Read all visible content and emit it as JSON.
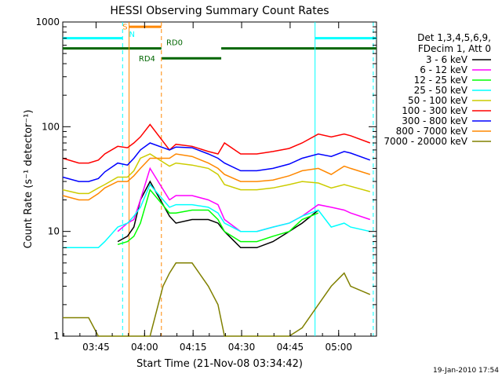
{
  "chart_data": {
    "type": "line",
    "title": "HESSI Observing Summary Count Rates",
    "xlabel": "Start Time (21-Nov-08 03:34:42)",
    "ylabel": "Count Rate (s⁻¹ detector⁻¹)",
    "yscale": "log",
    "ylim": [
      1,
      1000
    ],
    "xlim_minutes": [
      0,
      97
    ],
    "xticks": [
      {
        "label": "03:45",
        "minute": 10.3
      },
      {
        "label": "04:00",
        "minute": 25.3
      },
      {
        "label": "04:15",
        "minute": 40.3
      },
      {
        "label": "04:30",
        "minute": 55.3
      },
      {
        "label": "04:45",
        "minute": 70.3
      },
      {
        "label": "05:00",
        "minute": 85.3
      }
    ],
    "yticks": [
      {
        "label": "1",
        "value": 1
      },
      {
        "label": "10",
        "value": 10
      },
      {
        "label": "100",
        "value": 100
      },
      {
        "label": "1000",
        "value": 1000
      }
    ],
    "legend_header": [
      "Det 1,3,4,5,6,9,",
      "FDecim 1, Att 0"
    ],
    "legend_position": "right",
    "series": [
      {
        "name": "3 - 6 keV",
        "color": "#000000",
        "points": [
          [
            17,
            8
          ],
          [
            20,
            9
          ],
          [
            22,
            11
          ],
          [
            24,
            20
          ],
          [
            27,
            30
          ],
          [
            33,
            14
          ],
          [
            35,
            12
          ],
          [
            40,
            13
          ],
          [
            45,
            13
          ],
          [
            48,
            12
          ],
          [
            50,
            10
          ],
          [
            55,
            7
          ],
          [
            60,
            7
          ],
          [
            65,
            8
          ],
          [
            70,
            10
          ],
          [
            74,
            12
          ],
          [
            79,
            16
          ]
        ]
      },
      {
        "name": "6 - 12 keV",
        "color": "#ff00ff",
        "points": [
          [
            17,
            10
          ],
          [
            20,
            12
          ],
          [
            22,
            13
          ],
          [
            24,
            20
          ],
          [
            27,
            40
          ],
          [
            33,
            20
          ],
          [
            35,
            22
          ],
          [
            40,
            22
          ],
          [
            45,
            20
          ],
          [
            48,
            18
          ],
          [
            50,
            13
          ],
          [
            55,
            10
          ],
          [
            60,
            10
          ],
          [
            65,
            11
          ],
          [
            70,
            12
          ],
          [
            74,
            14
          ],
          [
            79,
            18
          ],
          [
            83,
            17
          ],
          [
            87,
            16
          ],
          [
            89,
            15
          ],
          [
            95,
            13
          ]
        ]
      },
      {
        "name": "12 - 25 keV",
        "color": "#00ff00",
        "points": [
          [
            17,
            7.5
          ],
          [
            20,
            8
          ],
          [
            22,
            9
          ],
          [
            24,
            12
          ],
          [
            27,
            25
          ],
          [
            33,
            15
          ],
          [
            35,
            15
          ],
          [
            40,
            16
          ],
          [
            45,
            16
          ],
          [
            48,
            13
          ],
          [
            50,
            10
          ],
          [
            55,
            8
          ],
          [
            60,
            8
          ],
          [
            65,
            9
          ],
          [
            70,
            10
          ],
          [
            74,
            13
          ],
          [
            79,
            15
          ]
        ]
      },
      {
        "name": "25 - 50 keV",
        "color": "#00ffff",
        "points": [
          [
            0,
            7
          ],
          [
            5,
            7
          ],
          [
            8,
            7
          ],
          [
            11,
            7
          ],
          [
            13,
            8
          ],
          [
            17,
            11
          ],
          [
            20,
            12
          ],
          [
            22,
            14
          ],
          [
            24,
            17
          ],
          [
            27,
            28
          ],
          [
            33,
            17
          ],
          [
            35,
            18
          ],
          [
            40,
            18
          ],
          [
            45,
            17
          ],
          [
            48,
            15
          ],
          [
            50,
            12
          ],
          [
            55,
            10
          ],
          [
            60,
            10
          ],
          [
            65,
            11
          ],
          [
            70,
            12
          ],
          [
            74,
            14
          ],
          [
            79,
            16
          ],
          [
            83,
            11
          ],
          [
            87,
            12
          ],
          [
            89,
            11
          ],
          [
            95,
            10
          ]
        ]
      },
      {
        "name": "50 - 100 keV",
        "color": "#cccc00",
        "points": [
          [
            0,
            25
          ],
          [
            5,
            23
          ],
          [
            8,
            23
          ],
          [
            11,
            26
          ],
          [
            13,
            28
          ],
          [
            17,
            33
          ],
          [
            20,
            33
          ],
          [
            22,
            38
          ],
          [
            24,
            50
          ],
          [
            27,
            55
          ],
          [
            33,
            42
          ],
          [
            35,
            45
          ],
          [
            40,
            43
          ],
          [
            45,
            40
          ],
          [
            48,
            35
          ],
          [
            50,
            28
          ],
          [
            55,
            25
          ],
          [
            60,
            25
          ],
          [
            65,
            26
          ],
          [
            70,
            28
          ],
          [
            74,
            30
          ],
          [
            79,
            29
          ],
          [
            83,
            26
          ],
          [
            87,
            28
          ],
          [
            89,
            27
          ],
          [
            95,
            24
          ]
        ]
      },
      {
        "name": "100 - 300 keV",
        "color": "#ff0000",
        "points": [
          [
            0,
            50
          ],
          [
            5,
            45
          ],
          [
            8,
            45
          ],
          [
            11,
            48
          ],
          [
            13,
            55
          ],
          [
            17,
            65
          ],
          [
            20,
            63
          ],
          [
            22,
            70
          ],
          [
            24,
            80
          ],
          [
            27,
            105
          ],
          [
            33,
            60
          ],
          [
            35,
            68
          ],
          [
            40,
            65
          ],
          [
            45,
            58
          ],
          [
            48,
            55
          ],
          [
            50,
            70
          ],
          [
            55,
            55
          ],
          [
            60,
            55
          ],
          [
            65,
            58
          ],
          [
            70,
            62
          ],
          [
            74,
            70
          ],
          [
            79,
            85
          ],
          [
            83,
            80
          ],
          [
            87,
            85
          ],
          [
            89,
            82
          ],
          [
            95,
            70
          ]
        ]
      },
      {
        "name": "300 - 800 keV",
        "color": "#0000ff",
        "points": [
          [
            0,
            33
          ],
          [
            5,
            30
          ],
          [
            8,
            30
          ],
          [
            11,
            32
          ],
          [
            13,
            37
          ],
          [
            17,
            45
          ],
          [
            20,
            43
          ],
          [
            22,
            50
          ],
          [
            24,
            60
          ],
          [
            27,
            70
          ],
          [
            33,
            60
          ],
          [
            35,
            64
          ],
          [
            40,
            63
          ],
          [
            45,
            55
          ],
          [
            48,
            50
          ],
          [
            50,
            45
          ],
          [
            55,
            38
          ],
          [
            60,
            38
          ],
          [
            65,
            40
          ],
          [
            70,
            44
          ],
          [
            74,
            50
          ],
          [
            79,
            55
          ],
          [
            83,
            52
          ],
          [
            87,
            58
          ],
          [
            89,
            56
          ],
          [
            95,
            48
          ]
        ]
      },
      {
        "name": "800 - 7000 keV",
        "color": "#ff8800",
        "points": [
          [
            0,
            22
          ],
          [
            5,
            20
          ],
          [
            8,
            20
          ],
          [
            11,
            23
          ],
          [
            13,
            26
          ],
          [
            17,
            30
          ],
          [
            20,
            30
          ],
          [
            22,
            34
          ],
          [
            24,
            40
          ],
          [
            27,
            50
          ],
          [
            33,
            50
          ],
          [
            35,
            55
          ],
          [
            40,
            52
          ],
          [
            45,
            45
          ],
          [
            48,
            40
          ],
          [
            50,
            35
          ],
          [
            55,
            30
          ],
          [
            60,
            30
          ],
          [
            65,
            31
          ],
          [
            70,
            34
          ],
          [
            74,
            38
          ],
          [
            79,
            40
          ],
          [
            83,
            35
          ],
          [
            87,
            42
          ],
          [
            89,
            40
          ],
          [
            95,
            35
          ]
        ]
      },
      {
        "name": "7000 - 20000 keV",
        "color": "#808000",
        "points": [
          [
            0,
            1.5
          ],
          [
            5,
            1.5
          ],
          [
            8,
            1.5
          ],
          [
            11,
            1
          ],
          [
            13,
            1
          ],
          [
            17,
            1
          ],
          [
            20,
            1
          ],
          [
            27,
            1
          ],
          [
            31,
            3
          ],
          [
            33,
            4
          ],
          [
            35,
            5
          ],
          [
            40,
            5
          ],
          [
            45,
            3
          ],
          [
            48,
            2
          ],
          [
            50,
            1
          ],
          [
            55,
            1
          ],
          [
            60,
            1
          ],
          [
            65,
            1
          ],
          [
            70,
            1
          ],
          [
            74,
            1.2
          ],
          [
            79,
            2
          ],
          [
            83,
            3
          ],
          [
            87,
            4
          ],
          [
            89,
            3
          ],
          [
            95,
            2.5
          ]
        ]
      }
    ],
    "annotations": [
      {
        "text": "S",
        "color": "#ff8800",
        "minute": 18.5,
        "value": 850
      },
      {
        "text": "N",
        "color": "#00ffff",
        "minute": 20.5,
        "value": 720
      },
      {
        "text": "RD0",
        "color": "#006600",
        "minute": 32,
        "value": 600
      },
      {
        "text": "RD4",
        "color": "#006600",
        "minute": 23.5,
        "value": 420
      }
    ],
    "bars": [
      {
        "color": "#00ffff",
        "from": 0,
        "to": 18.5,
        "value": 700
      },
      {
        "color": "#00ffff",
        "from": 78,
        "to": 97,
        "value": 700
      },
      {
        "color": "#ff8800",
        "from": 20.5,
        "to": 30.5,
        "value": 900
      },
      {
        "color": "#006600",
        "from": 0,
        "to": 30.5,
        "value": 560
      },
      {
        "color": "#006600",
        "from": 30.5,
        "to": 49,
        "value": 450
      },
      {
        "color": "#006600",
        "from": 49,
        "to": 97,
        "value": 560
      }
    ],
    "vlines": [
      {
        "color": "#00ffff",
        "minute": 18.5,
        "style": "dashed"
      },
      {
        "color": "#ff8800",
        "minute": 20.5,
        "style": "solid"
      },
      {
        "color": "#ff8800",
        "minute": 30.5,
        "style": "dashed"
      },
      {
        "color": "#00ffff",
        "minute": 78,
        "style": "solid"
      },
      {
        "color": "#00ffff",
        "minute": 96,
        "style": "dashed"
      }
    ],
    "footer_text": "19-Jan-2010 17:54"
  }
}
